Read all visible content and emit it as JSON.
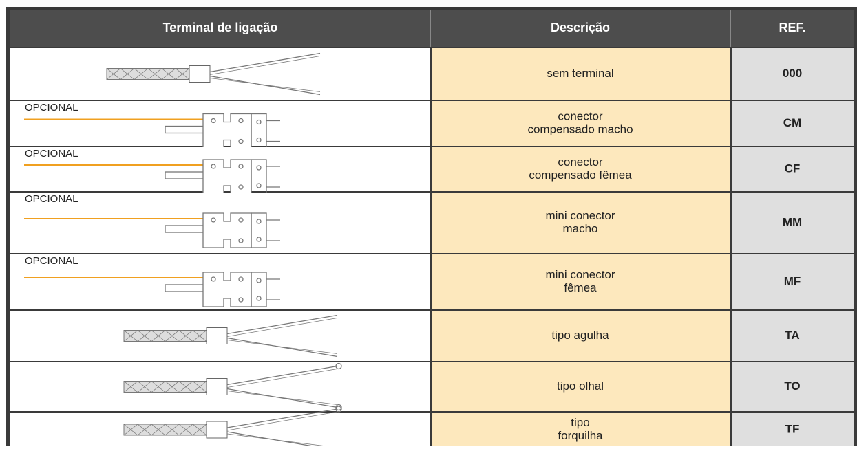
{
  "table": {
    "header": [
      "Terminal de ligação",
      "Descrição",
      "REF."
    ],
    "rows": [
      {
        "description": [
          "sem terminal"
        ],
        "ref": "000"
      },
      {
        "label": "OPCIONAL",
        "description": [
          "conector",
          "compensado macho"
        ],
        "ref": "CM"
      },
      {
        "label": "OPCIONAL",
        "description": [
          "conector",
          "compensado fêmea"
        ],
        "ref": "CF"
      },
      {
        "label": "OPCIONAL",
        "description": [
          "mini conector",
          "macho"
        ],
        "ref": "MM"
      },
      {
        "label": "OPCIONAL",
        "description": [
          "mini conector",
          "fêmea"
        ],
        "ref": "MF"
      },
      {
        "description": [
          "tipo agulha"
        ],
        "ref": "TA"
      },
      {
        "description": [
          "tipo olhal"
        ],
        "ref": "TO"
      },
      {
        "description": [
          "tipo",
          "forquilha"
        ],
        "ref": "TF"
      }
    ]
  }
}
